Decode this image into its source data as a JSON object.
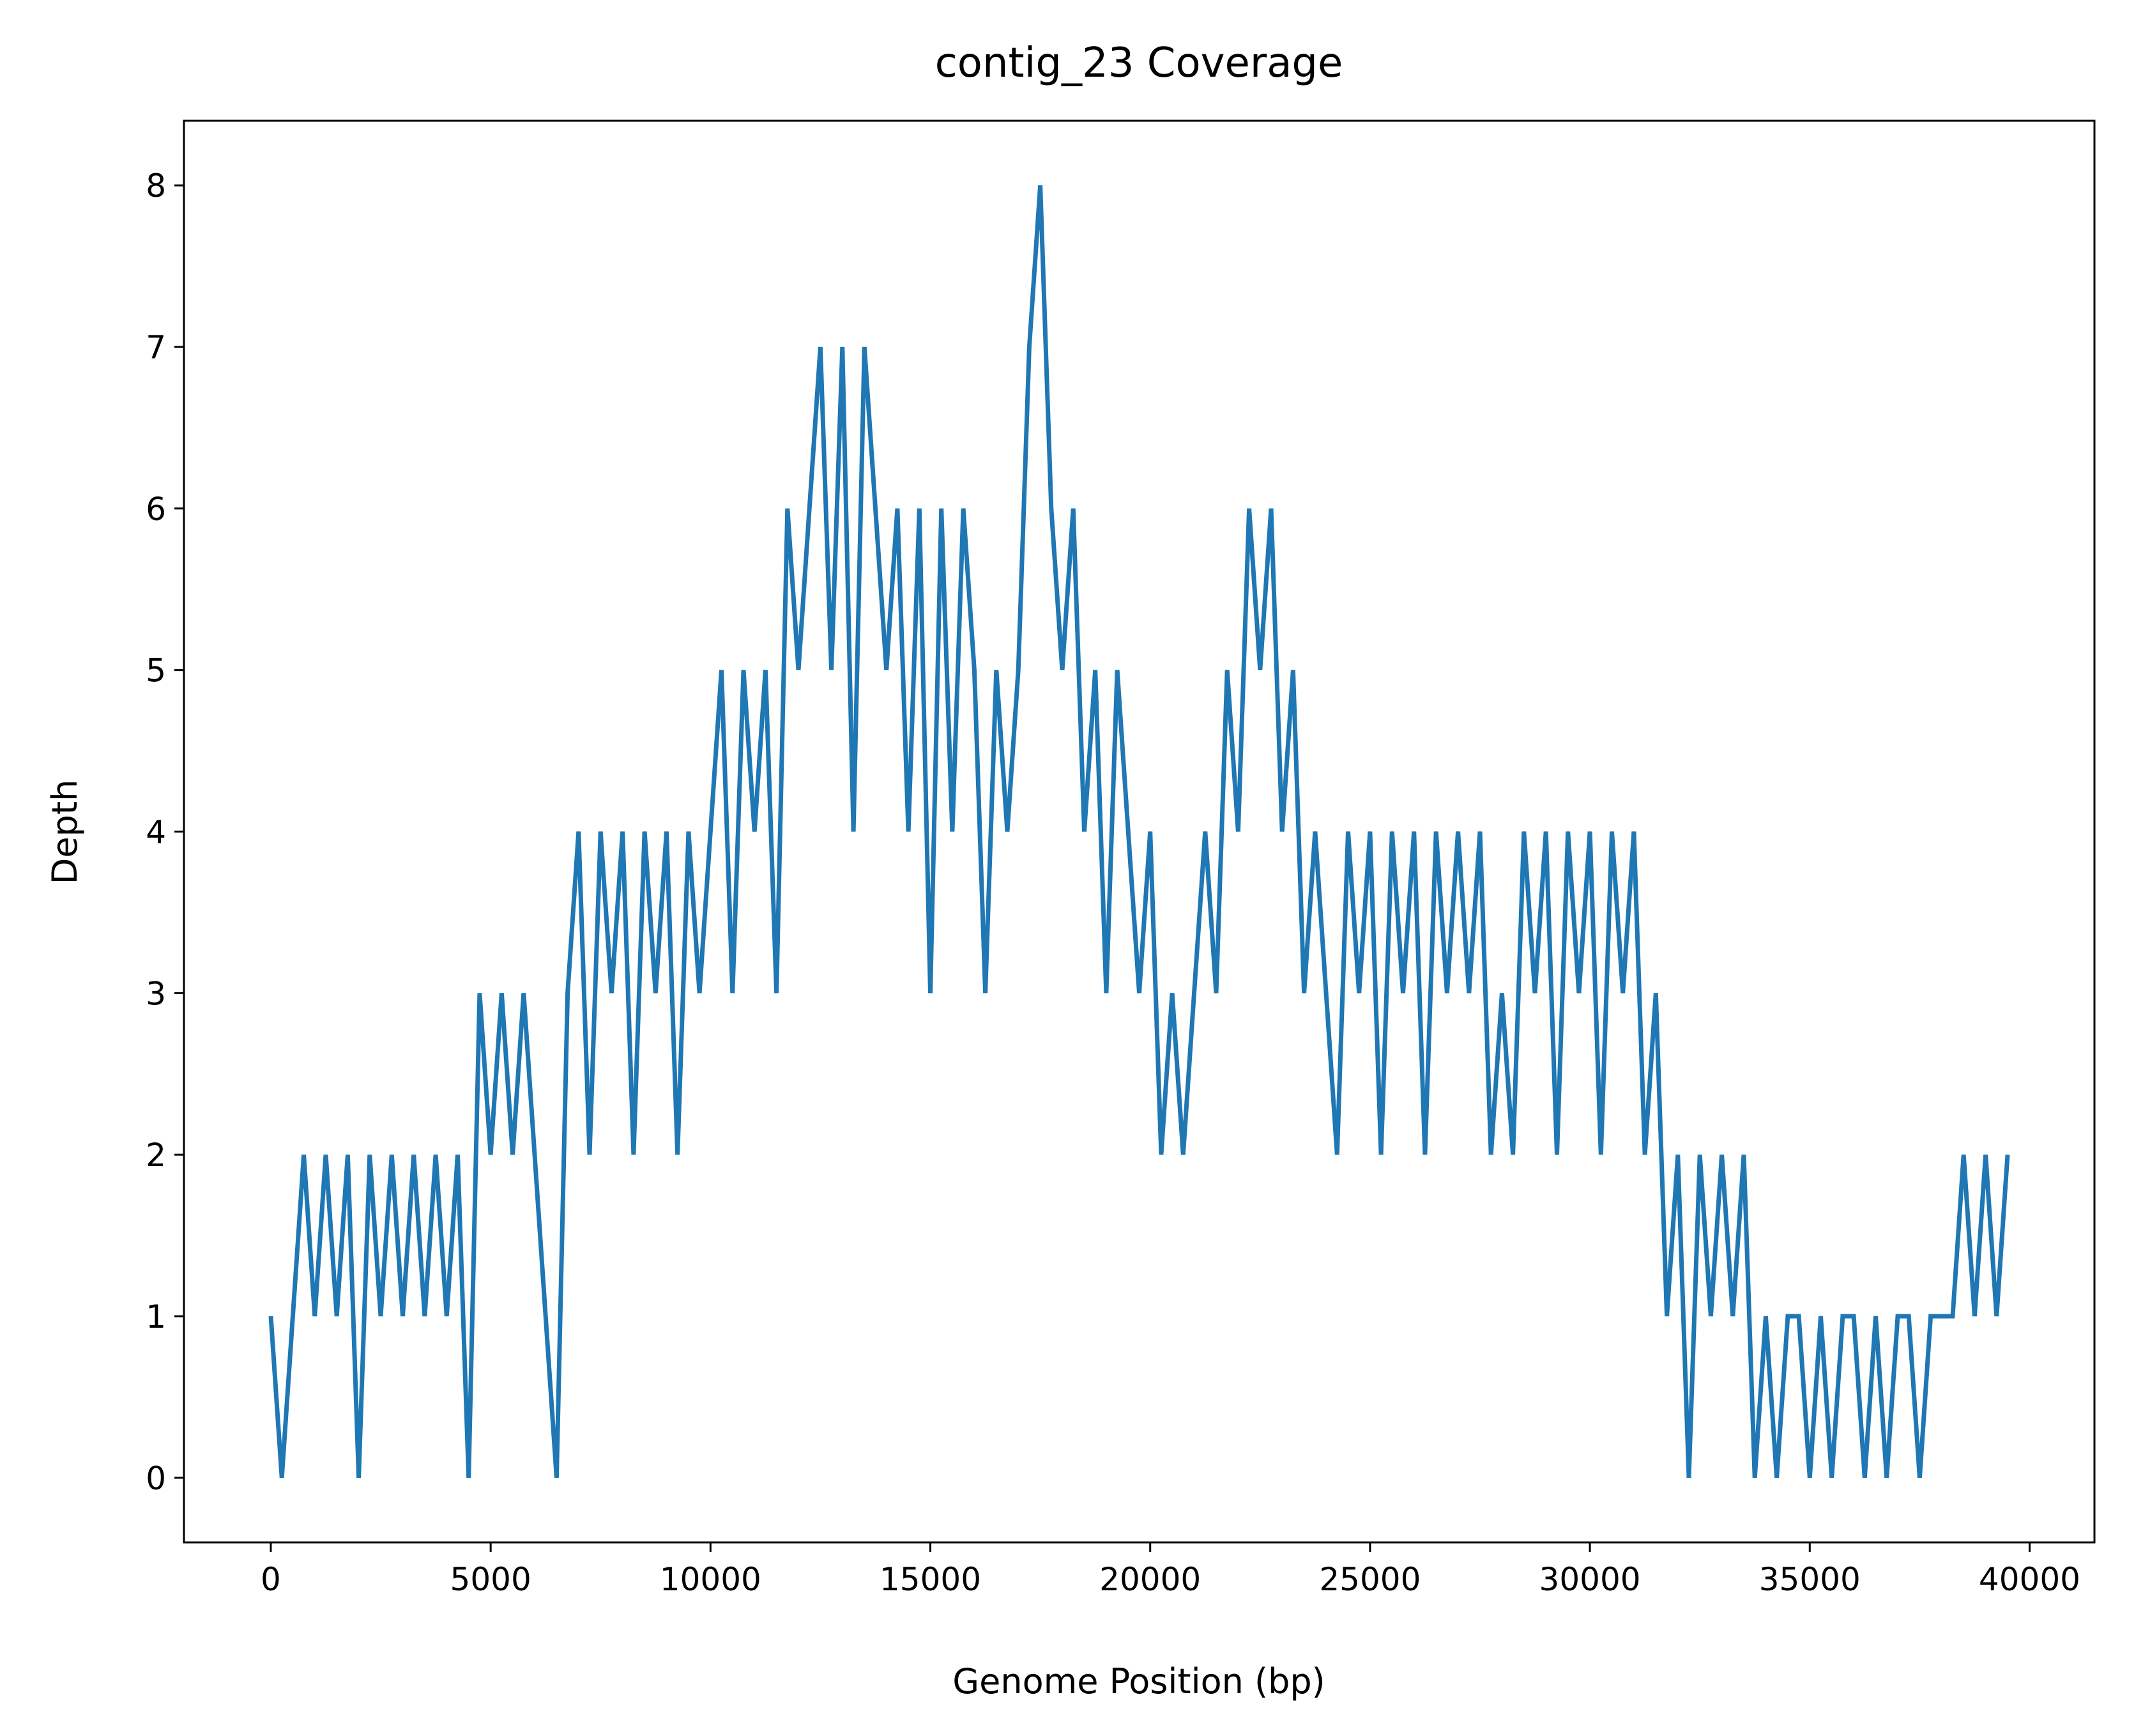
{
  "chart_data": {
    "type": "line",
    "title": "contig_23 Coverage",
    "xlabel": "Genome Position (bp)",
    "ylabel": "Depth",
    "x": [
      0,
      250,
      500,
      750,
      1000,
      1250,
      1500,
      1750,
      2000,
      2250,
      2500,
      2750,
      3000,
      3250,
      3500,
      3750,
      4000,
      4250,
      4500,
      4750,
      5000,
      5250,
      5500,
      5750,
      6000,
      6250,
      6500,
      6750,
      7000,
      7250,
      7500,
      7750,
      8000,
      8250,
      8500,
      8750,
      9000,
      9250,
      9500,
      9750,
      10000,
      10250,
      10500,
      10750,
      11000,
      11250,
      11500,
      11750,
      12000,
      12250,
      12500,
      12750,
      13000,
      13250,
      13500,
      13750,
      14000,
      14250,
      14500,
      14750,
      15000,
      15250,
      15500,
      15750,
      16000,
      16250,
      16500,
      16750,
      17000,
      17250,
      17500,
      17750,
      18000,
      18250,
      18500,
      18750,
      19000,
      19250,
      19500,
      19750,
      20000,
      20250,
      20500,
      20750,
      21000,
      21250,
      21500,
      21750,
      22000,
      22250,
      22500,
      22750,
      23000,
      23250,
      23500,
      23750,
      24000,
      24250,
      24500,
      24750,
      25000,
      25250,
      25500,
      25750,
      26000,
      26250,
      26500,
      26750,
      27000,
      27250,
      27500,
      27750,
      28000,
      28250,
      28500,
      28750,
      29000,
      29250,
      29500,
      29750,
      30000,
      30250,
      30500,
      30750,
      31000,
      31250,
      31500,
      31750,
      32000,
      32250,
      32500,
      32750,
      33000,
      33250,
      33500,
      33750,
      34000,
      34250,
      34500,
      34750,
      35000,
      35250,
      35500,
      35750,
      36000,
      36250,
      36500,
      36750,
      37000,
      37250,
      37500,
      37750,
      38000,
      38250,
      38500,
      38750,
      39000,
      39250,
      39500
    ],
    "series": [
      {
        "name": "Depth",
        "color": "#1f77b4",
        "values": [
          1,
          0,
          1,
          2,
          1,
          2,
          1,
          2,
          0,
          2,
          1,
          2,
          1,
          2,
          1,
          2,
          1,
          2,
          0,
          3,
          2,
          3,
          2,
          3,
          2,
          1,
          0,
          3,
          4,
          2,
          4,
          3,
          4,
          2,
          4,
          3,
          4,
          2,
          4,
          3,
          4,
          5,
          3,
          5,
          4,
          5,
          3,
          6,
          5,
          6,
          7,
          5,
          7,
          4,
          7,
          6,
          5,
          6,
          4,
          6,
          3,
          6,
          4,
          6,
          5,
          3,
          5,
          4,
          5,
          7,
          8,
          6,
          5,
          6,
          4,
          5,
          3,
          5,
          4,
          3,
          4,
          2,
          3,
          2,
          3,
          4,
          3,
          5,
          4,
          6,
          5,
          6,
          4,
          5,
          3,
          4,
          3,
          2,
          4,
          3,
          4,
          2,
          4,
          3,
          4,
          2,
          4,
          3,
          4,
          3,
          4,
          2,
          3,
          2,
          4,
          3,
          4,
          2,
          4,
          3,
          4,
          2,
          4,
          3,
          4,
          2,
          3,
          1,
          2,
          0,
          2,
          1,
          2,
          1,
          2,
          0,
          1,
          0,
          1,
          1,
          0,
          1,
          0,
          1,
          1,
          0,
          1,
          0,
          1,
          1,
          0,
          1,
          1,
          1,
          2,
          1,
          2,
          1,
          2
        ]
      }
    ],
    "xlim": [
      -1975,
      41475
    ],
    "xticks": [
      0,
      5000,
      10000,
      15000,
      20000,
      25000,
      30000,
      35000,
      40000
    ],
    "ylim": [
      -0.4,
      8.4
    ],
    "yticks": [
      0,
      1,
      2,
      3,
      4,
      5,
      6,
      7,
      8
    ],
    "grid": false
  }
}
